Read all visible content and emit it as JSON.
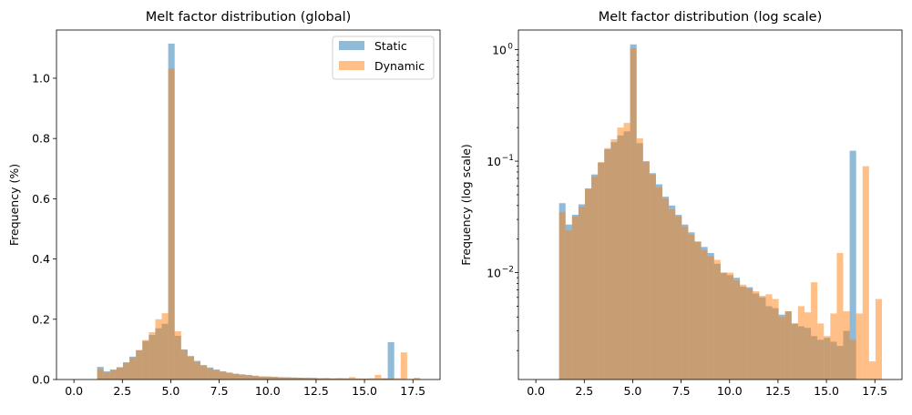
{
  "chart_data": [
    {
      "type": "histogram",
      "title": "Melt factor distribution (global)",
      "xlabel": "",
      "ylabel": "Frequency (%)",
      "yscale": "linear",
      "xlim": [
        -0.9,
        18.9
      ],
      "ylim": [
        0,
        1.16
      ],
      "xticks": [
        "0.0",
        "2.5",
        "5.0",
        "7.5",
        "10.0",
        "12.5",
        "15.0",
        "17.5"
      ],
      "yticks": [
        "0.0",
        "0.2",
        "0.4",
        "0.6",
        "0.8",
        "1.0"
      ],
      "legend_position": "top-right",
      "bin_width": 0.3333,
      "bin_starts": [
        1.2,
        1.533,
        1.867,
        2.2,
        2.533,
        2.867,
        3.2,
        3.533,
        3.867,
        4.2,
        4.533,
        4.867,
        5.2,
        5.533,
        5.867,
        6.2,
        6.533,
        6.867,
        7.2,
        7.533,
        7.867,
        8.2,
        8.533,
        8.867,
        9.2,
        9.533,
        9.867,
        10.2,
        10.533,
        10.867,
        11.2,
        11.533,
        11.867,
        12.2,
        12.533,
        12.867,
        13.2,
        13.533,
        13.867,
        14.2,
        14.533,
        14.867,
        15.2,
        15.533,
        15.867,
        16.2,
        16.533,
        16.867,
        17.2,
        17.533
      ],
      "series": [
        {
          "name": "Static",
          "color": "#1f77b4",
          "values": [
            0.042,
            0.027,
            0.033,
            0.041,
            0.057,
            0.076,
            0.097,
            0.128,
            0.148,
            0.17,
            0.185,
            1.115,
            0.145,
            0.1,
            0.078,
            0.062,
            0.048,
            0.04,
            0.033,
            0.027,
            0.023,
            0.019,
            0.017,
            0.015,
            0.012,
            0.01,
            0.0095,
            0.009,
            0.0075,
            0.0074,
            0.0065,
            0.006,
            0.005,
            0.0048,
            0.0042,
            0.0045,
            0.0035,
            0.0033,
            0.0032,
            0.0027,
            0.0025,
            0.0026,
            0.0024,
            0.0022,
            0.003,
            0.124,
            0,
            0,
            0,
            0
          ]
        },
        {
          "name": "Dynamic",
          "color": "#ff7f0e",
          "values": [
            0.035,
            0.024,
            0.032,
            0.039,
            0.056,
            0.073,
            0.098,
            0.131,
            0.157,
            0.2,
            0.22,
            1.032,
            0.16,
            0.098,
            0.076,
            0.058,
            0.046,
            0.037,
            0.032,
            0.026,
            0.022,
            0.019,
            0.016,
            0.014,
            0.013,
            0.01,
            0.01,
            0.0085,
            0.0078,
            0.0072,
            0.0068,
            0.0062,
            0.0064,
            0.0058,
            0.004,
            0.0045,
            0.0035,
            0.005,
            0.0044,
            0.0082,
            0.0035,
            0.0027,
            0.0043,
            0.015,
            0.0045,
            0.0025,
            0.0043,
            0.09,
            0.0016,
            0.0058
          ]
        }
      ]
    },
    {
      "type": "histogram",
      "title": "Melt factor distribution (log scale)",
      "xlabel": "",
      "ylabel": "Frequency (log scale)",
      "yscale": "log",
      "xlim": [
        -0.9,
        18.9
      ],
      "ylim": [
        0.0011,
        1.5
      ],
      "xticks": [
        "0.0",
        "2.5",
        "5.0",
        "7.5",
        "10.0",
        "12.5",
        "15.0",
        "17.5"
      ],
      "yticks": [
        "10^0",
        "10^-1",
        "10^-2"
      ],
      "ytick_labels": [
        {
          "base": "10",
          "exp": "0"
        },
        {
          "base": "10",
          "exp": "−1"
        },
        {
          "base": "10",
          "exp": "−2"
        }
      ],
      "shares_data_with": 0
    }
  ]
}
